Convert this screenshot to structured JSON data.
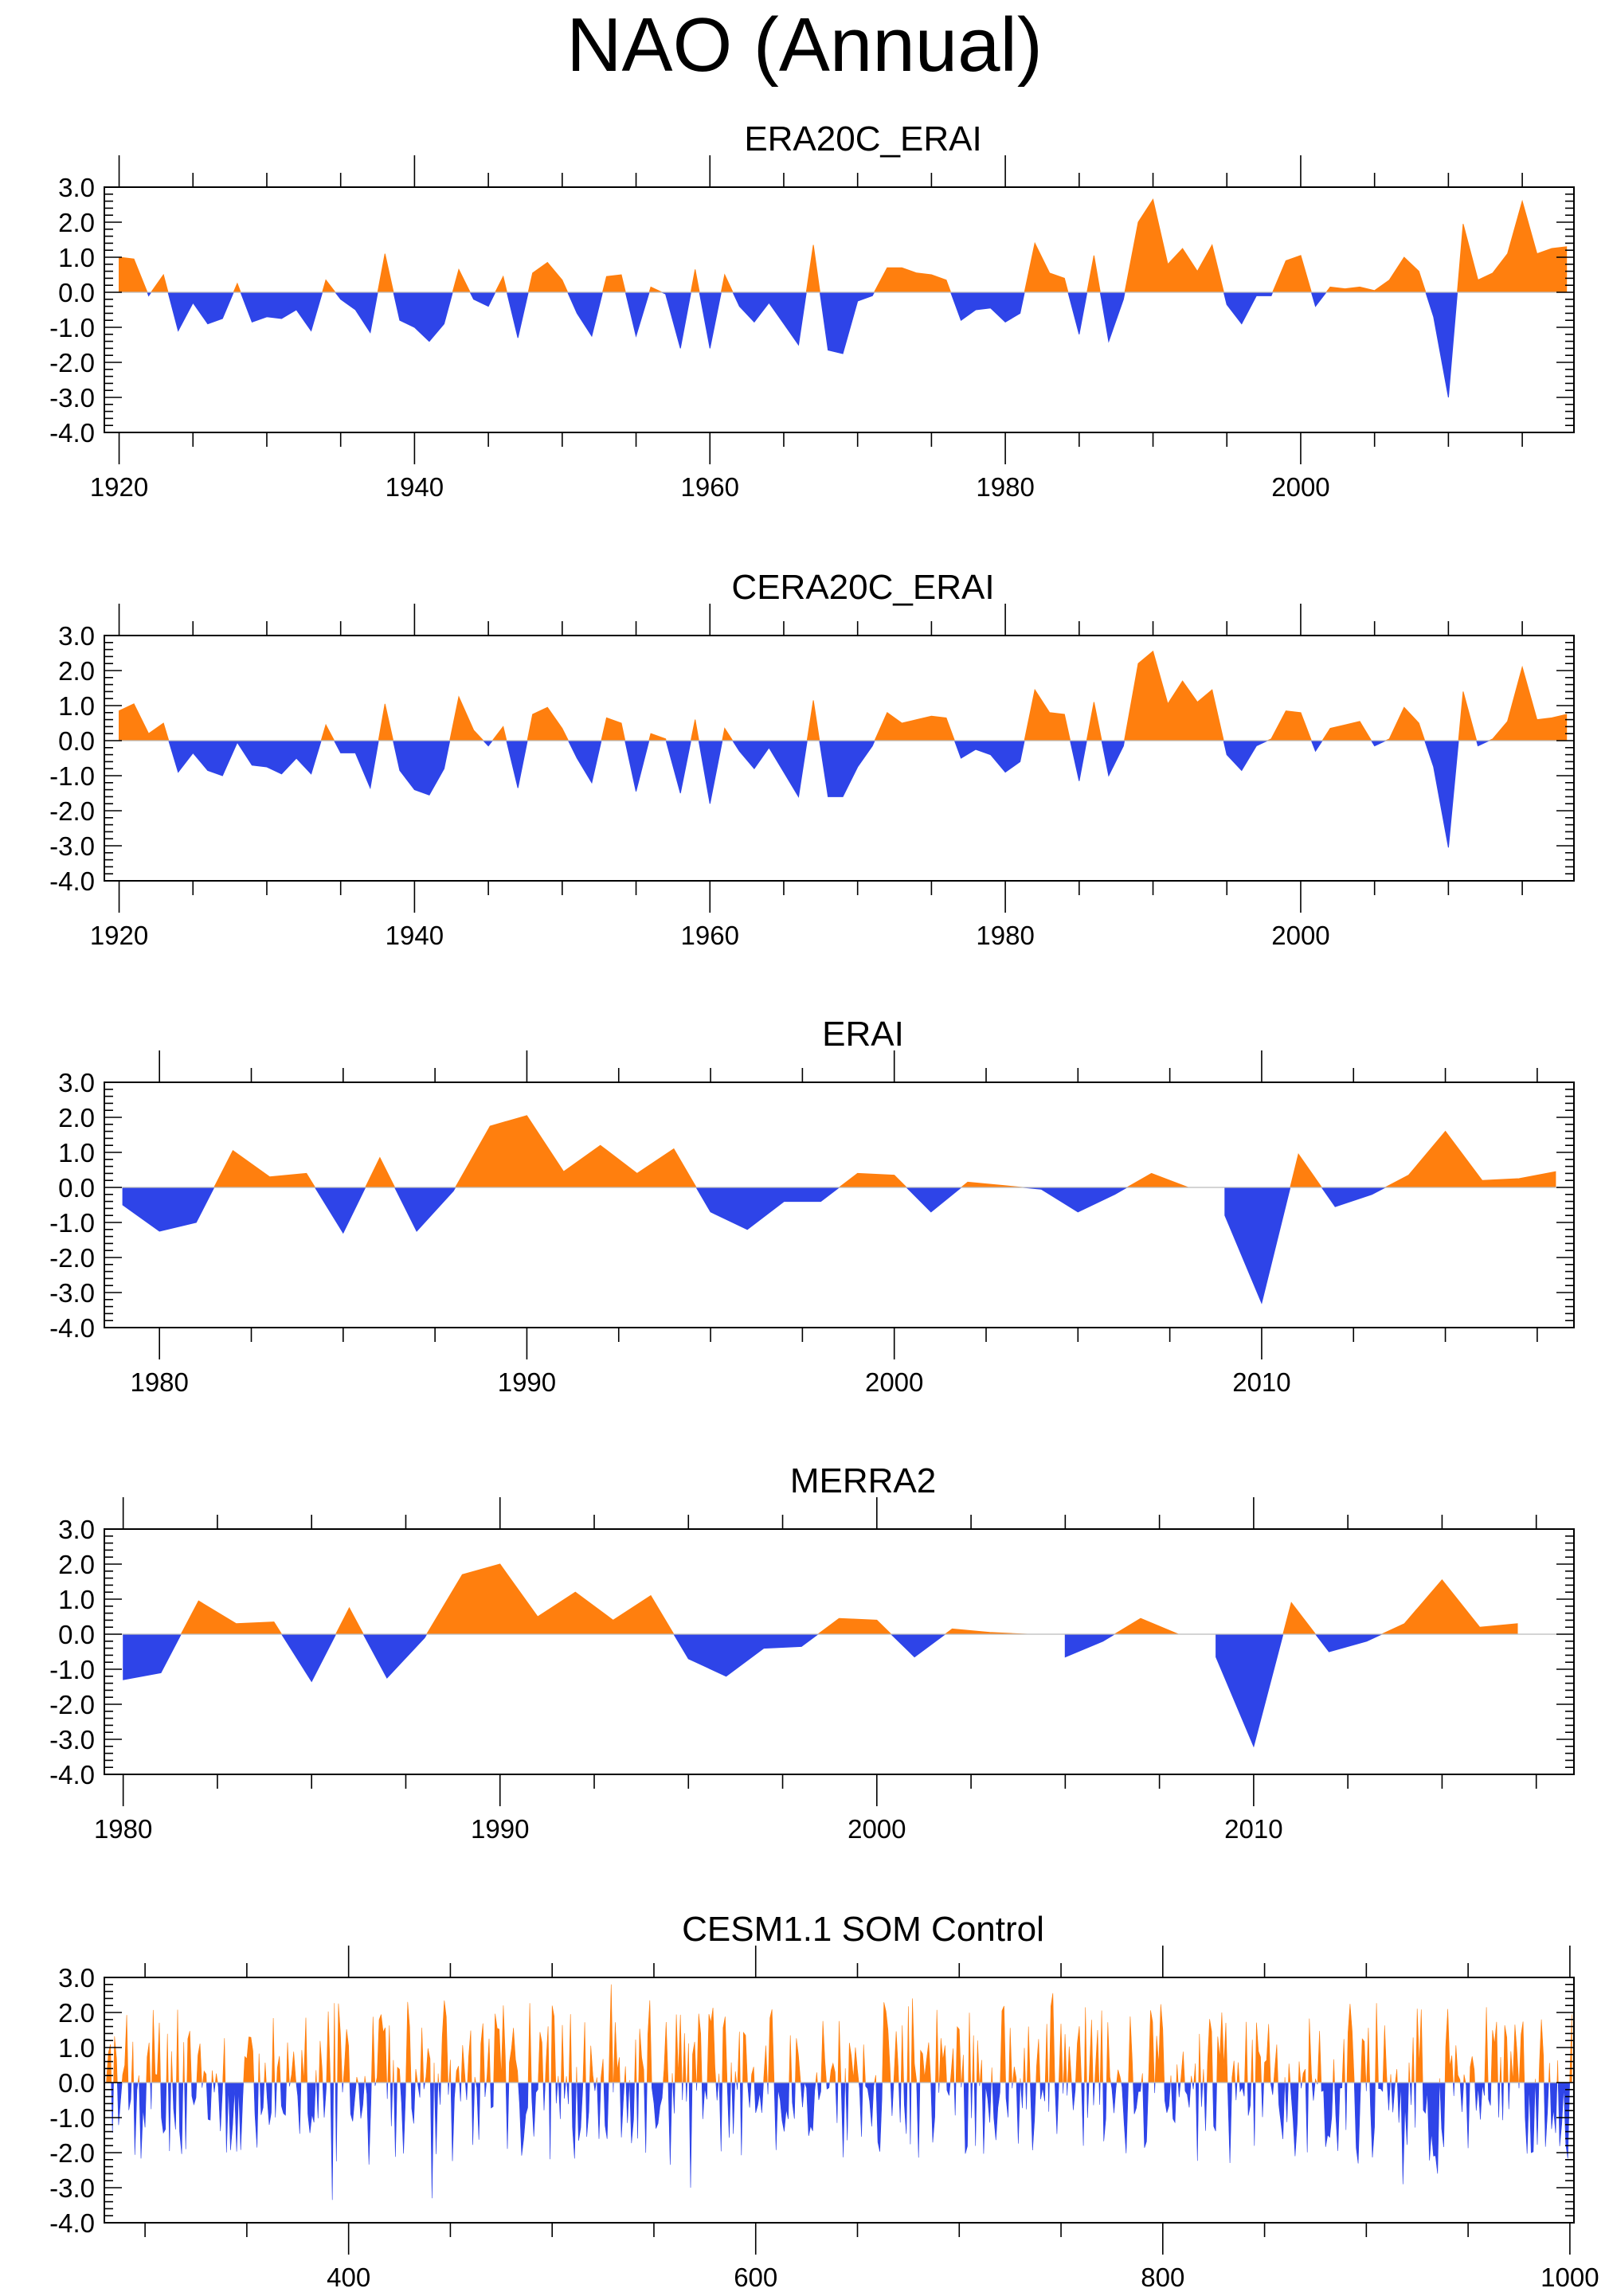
{
  "title": "NAO (Annual)",
  "colors": {
    "positive": "#ff7f0e",
    "negative": "#2e44e8",
    "axis": "#000000"
  },
  "chart_data": [
    {
      "type": "area",
      "title": "ERA20C_ERAI",
      "xlim": [
        1919,
        2018.5
      ],
      "ylim": [
        -4,
        3
      ],
      "xticks": [
        1920,
        1940,
        1960,
        1980,
        2000
      ],
      "yticks": [
        "3.0",
        "2.0",
        "1.0",
        "0.0",
        "-1.0",
        "-2.0",
        "-3.0",
        "-4.0"
      ],
      "x_start": 1920,
      "values": [
        1.0,
        0.95,
        -0.1,
        0.5,
        -1.1,
        -0.3,
        -0.9,
        -0.75,
        0.25,
        -0.85,
        -0.7,
        -0.75,
        -0.5,
        -1.1,
        0.35,
        -0.2,
        -0.5,
        -1.15,
        1.1,
        -0.8,
        -1.0,
        -1.4,
        -0.9,
        0.65,
        -0.2,
        -0.4,
        0.45,
        -1.3,
        0.55,
        0.85,
        0.35,
        -0.6,
        -1.25,
        0.45,
        0.5,
        -1.25,
        0.15,
        -0.05,
        -1.6,
        0.65,
        -1.6,
        0.5,
        -0.4,
        -0.85,
        -0.3,
        -0.9,
        -1.5,
        1.35,
        -1.65,
        -1.75,
        -0.25,
        -0.1,
        0.7,
        0.7,
        0.55,
        0.5,
        0.35,
        -0.8,
        -0.5,
        -0.45,
        -0.85,
        -0.6,
        1.4,
        0.55,
        0.4,
        -1.2,
        1.05,
        -1.4,
        -0.2,
        2.0,
        2.65,
        0.8,
        1.25,
        0.6,
        1.35,
        -0.35,
        -0.9,
        -0.1,
        -0.1,
        0.9,
        1.05,
        -0.4,
        0.15,
        0.1,
        0.15,
        0.05,
        0.35,
        1.0,
        0.6,
        -0.7,
        -3.0,
        1.95,
        0.35,
        0.55,
        1.1,
        2.6,
        1.1,
        1.25,
        1.3
      ]
    },
    {
      "type": "area",
      "title": "CERA20C_ERAI",
      "xlim": [
        1919,
        2018.5
      ],
      "ylim": [
        -4,
        3
      ],
      "xticks": [
        1920,
        1940,
        1960,
        1980,
        2000
      ],
      "yticks": [
        "3.0",
        "2.0",
        "1.0",
        "0.0",
        "-1.0",
        "-2.0",
        "-3.0",
        "-4.0"
      ],
      "x_start": 1920,
      "values": [
        0.85,
        1.05,
        0.2,
        0.5,
        -0.9,
        -0.35,
        -0.85,
        -1.0,
        -0.05,
        -0.7,
        -0.75,
        -0.95,
        -0.5,
        -0.95,
        0.45,
        -0.35,
        -0.35,
        -1.35,
        1.05,
        -0.85,
        -1.4,
        -1.55,
        -0.8,
        1.25,
        0.3,
        -0.15,
        0.4,
        -1.35,
        0.75,
        0.95,
        0.35,
        -0.5,
        -1.2,
        0.65,
        0.5,
        -1.45,
        0.2,
        0.05,
        -1.5,
        0.6,
        -1.8,
        0.35,
        -0.3,
        -0.8,
        -0.2,
        -0.9,
        -1.6,
        1.15,
        -1.6,
        -1.6,
        -0.75,
        -0.15,
        0.8,
        0.5,
        0.6,
        0.7,
        0.65,
        -0.5,
        -0.25,
        -0.4,
        -0.9,
        -0.6,
        1.45,
        0.8,
        0.75,
        -1.15,
        1.1,
        -1.0,
        -0.15,
        2.2,
        2.55,
        1.05,
        1.7,
        1.1,
        1.45,
        -0.4,
        -0.85,
        -0.15,
        0.05,
        0.85,
        0.8,
        -0.3,
        0.35,
        0.45,
        0.55,
        -0.15,
        0.05,
        0.95,
        0.5,
        -0.75,
        -3.05,
        1.4,
        -0.15,
        0.05,
        0.55,
        2.1,
        0.6,
        0.65,
        0.75
      ]
    },
    {
      "type": "area",
      "title": "ERAI",
      "xlim": [
        1978.5,
        2018.5
      ],
      "ylim": [
        -4,
        3
      ],
      "xticks": [
        1980,
        1990,
        2000,
        2010
      ],
      "yticks": [
        "3.0",
        "2.0",
        "1.0",
        "0.0",
        "-1.0",
        "-2.0",
        "-3.0",
        "-4.0"
      ],
      "x_start": 1979,
      "values": [
        -0.5,
        -1.25,
        -1.0,
        1.05,
        0.3,
        0.4,
        -1.3,
        0.85,
        -1.25,
        -0.1,
        1.75,
        2.05,
        0.45,
        1.2,
        0.4,
        1.1,
        -0.7,
        -1.2,
        -0.4,
        -0.4,
        0.4,
        0.35,
        -0.7,
        0.15,
        0.05,
        -0.05,
        -0.7,
        -0.2,
        0.4,
        0.0,
        -0.8,
        -3.3,
        0.95,
        -0.55,
        -0.2,
        0.35,
        1.6,
        0.2,
        0.25,
        0.45
      ]
    },
    {
      "type": "area",
      "title": "MERRA2",
      "xlim": [
        1979.5,
        2018.5
      ],
      "ylim": [
        -4,
        3
      ],
      "xticks": [
        1980,
        1990,
        2000,
        2010
      ],
      "yticks": [
        "3.0",
        "2.0",
        "1.0",
        "0.0",
        "-1.0",
        "-2.0",
        "-3.0",
        "-4.0"
      ],
      "x_start": 1980,
      "values": [
        -1.3,
        -1.1,
        0.95,
        0.3,
        0.35,
        -1.35,
        0.75,
        -1.25,
        -0.1,
        1.7,
        2.0,
        0.5,
        1.2,
        0.4,
        1.1,
        -0.7,
        -1.2,
        -0.4,
        -0.35,
        0.45,
        0.4,
        -0.65,
        0.15,
        0.05,
        0.0,
        -0.65,
        -0.2,
        0.45,
        0.0,
        -0.65,
        -3.2,
        0.9,
        -0.5,
        -0.2,
        0.3,
        1.55,
        0.2,
        0.3
      ]
    },
    {
      "type": "area",
      "title": "CESM1.1 SOM Control",
      "xlim": [
        280,
        1002
      ],
      "ylim": [
        -4,
        3
      ],
      "xticks": [
        400,
        600,
        800,
        1000
      ],
      "yticks": [
        "3.0",
        "2.0",
        "1.0",
        "0.0",
        "-1.0",
        "-2.0",
        "-3.0",
        "-4.0"
      ],
      "x_start": 281,
      "values_note": "721 annual values (years 281–1001); shown as dense alternating orange/blue spikes",
      "extremes": {
        "max": 2.8,
        "min": -3.4
      }
    }
  ]
}
